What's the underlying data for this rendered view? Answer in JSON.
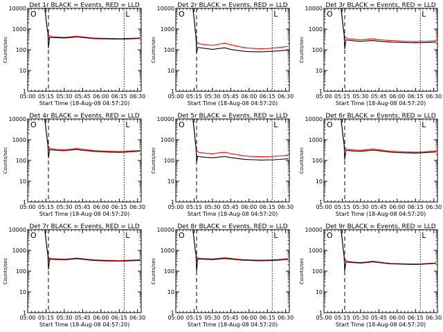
{
  "figure": {
    "xlabel": "Start Time (18-Aug-08 04:57:20)",
    "ylabel": "Counts/sec",
    "x_tick_labels": [
      "05:00",
      "05:15",
      "05:30",
      "05:45",
      "06:00",
      "06:15",
      "06:30"
    ],
    "y_tick_labels": [
      "1",
      "10",
      "100",
      "1000",
      "10000"
    ],
    "colors": {
      "events": "#000000",
      "lld": "#ff0000"
    }
  },
  "chart_data": [
    {
      "type": "line",
      "title": "Det 1r BLACK = Events, RED = LLD",
      "panel_marker_left": "O",
      "panel_marker_right": "L",
      "x_unit": "minutes since 05:00",
      "xlim": [
        0,
        93
      ],
      "ylim": [
        1,
        10000
      ],
      "yscale": "log",
      "vlines": [
        {
          "x": 17,
          "style": "dashed"
        },
        {
          "x": 79,
          "style": "dotted"
        }
      ],
      "x": [
        0,
        3,
        6,
        9,
        12,
        14,
        15,
        16,
        16.5,
        17,
        18,
        20,
        25,
        30,
        35,
        40,
        45,
        50,
        55,
        60,
        65,
        70,
        75,
        80,
        85,
        90,
        92
      ],
      "series": [
        {
          "name": "LLD",
          "color": "#ff0000",
          "values": [
            10000,
            10000,
            10000,
            10000,
            10000,
            10000,
            3000,
            1000,
            700,
            550,
            470,
            430,
            410,
            400,
            420,
            450,
            420,
            390,
            370,
            360,
            355,
            350,
            345,
            350,
            360,
            370,
            380
          ]
        },
        {
          "name": "Events",
          "color": "#000000",
          "values": [
            10000,
            10000,
            10000,
            10000,
            10000,
            10000,
            3000,
            1000,
            700,
            120,
            400,
            390,
            380,
            370,
            390,
            420,
            395,
            365,
            345,
            340,
            335,
            330,
            328,
            330,
            340,
            350,
            355
          ]
        }
      ]
    },
    {
      "type": "line",
      "title": "Det 2r BLACK = Events, RED = LLD",
      "panel_marker_left": "O",
      "panel_marker_right": "L",
      "x_unit": "minutes since 05:00",
      "xlim": [
        0,
        93
      ],
      "ylim": [
        1,
        10000
      ],
      "yscale": "log",
      "vlines": [
        {
          "x": 17,
          "style": "dashed"
        },
        {
          "x": 79,
          "style": "dotted"
        }
      ],
      "x": [
        0,
        3,
        6,
        9,
        12,
        14,
        15,
        16,
        16.5,
        17,
        18,
        20,
        25,
        30,
        35,
        40,
        45,
        50,
        55,
        60,
        65,
        70,
        75,
        80,
        85,
        90,
        92
      ],
      "series": [
        {
          "name": "LLD",
          "color": "#ff0000",
          "values": [
            10000,
            10000,
            10000,
            10000,
            10000,
            10000,
            3000,
            800,
            400,
            260,
            210,
            190,
            175,
            165,
            185,
            210,
            175,
            150,
            130,
            120,
            115,
            112,
            115,
            120,
            130,
            140,
            145
          ]
        },
        {
          "name": "Events",
          "color": "#000000",
          "values": [
            10000,
            10000,
            10000,
            10000,
            10000,
            10000,
            3000,
            800,
            400,
            70,
            130,
            125,
            115,
            105,
            115,
            125,
            105,
            95,
            85,
            82,
            80,
            80,
            82,
            85,
            90,
            95,
            98
          ]
        }
      ]
    },
    {
      "type": "line",
      "title": "Det 3r BLACK = Events, RED = LLD",
      "panel_marker_left": "O",
      "panel_marker_right": "L",
      "x_unit": "minutes since 05:00",
      "xlim": [
        0,
        93
      ],
      "ylim": [
        1,
        10000
      ],
      "yscale": "log",
      "vlines": [
        {
          "x": 17,
          "style": "dashed"
        },
        {
          "x": 79,
          "style": "dotted"
        }
      ],
      "x": [
        0,
        3,
        6,
        9,
        12,
        14,
        15,
        16,
        16.5,
        17,
        18,
        20,
        25,
        30,
        35,
        40,
        45,
        50,
        55,
        60,
        65,
        70,
        75,
        80,
        85,
        90,
        92
      ],
      "series": [
        {
          "name": "LLD",
          "color": "#ff0000",
          "values": [
            10000,
            10000,
            10000,
            10000,
            10000,
            10000,
            3000,
            900,
            600,
            450,
            380,
            340,
            320,
            300,
            320,
            340,
            310,
            290,
            280,
            270,
            260,
            255,
            250,
            255,
            260,
            270,
            280
          ]
        },
        {
          "name": "Events",
          "color": "#000000",
          "values": [
            10000,
            10000,
            10000,
            10000,
            10000,
            10000,
            3000,
            900,
            600,
            110,
            300,
            290,
            270,
            255,
            270,
            280,
            260,
            245,
            235,
            230,
            225,
            220,
            218,
            220,
            225,
            230,
            238
          ]
        }
      ]
    },
    {
      "type": "line",
      "title": "Det 4r BLACK = Events, RED = LLD",
      "panel_marker_left": "O",
      "panel_marker_right": "L",
      "x_unit": "minutes since 05:00",
      "xlim": [
        0,
        93
      ],
      "ylim": [
        1,
        10000
      ],
      "yscale": "log",
      "vlines": [
        {
          "x": 17,
          "style": "dashed"
        },
        {
          "x": 79,
          "style": "dotted"
        }
      ],
      "x": [
        0,
        3,
        6,
        9,
        12,
        14,
        15,
        16,
        16.5,
        17,
        18,
        20,
        25,
        30,
        35,
        40,
        45,
        50,
        55,
        60,
        65,
        70,
        75,
        80,
        85,
        90,
        92
      ],
      "series": [
        {
          "name": "LLD",
          "color": "#ff0000",
          "values": [
            10000,
            10000,
            10000,
            10000,
            10000,
            10000,
            3000,
            1000,
            600,
            460,
            390,
            360,
            340,
            330,
            350,
            380,
            350,
            320,
            300,
            290,
            280,
            275,
            270,
            275,
            290,
            300,
            305
          ]
        },
        {
          "name": "Events",
          "color": "#000000",
          "values": [
            10000,
            10000,
            10000,
            10000,
            10000,
            10000,
            3000,
            1000,
            600,
            130,
            330,
            320,
            305,
            295,
            315,
            335,
            310,
            290,
            270,
            262,
            255,
            250,
            248,
            252,
            265,
            272,
            278
          ]
        }
      ]
    },
    {
      "type": "line",
      "title": "Det 5r BLACK = Events, RED = LLD",
      "panel_marker_left": "O",
      "panel_marker_right": "L",
      "x_unit": "minutes since 05:00",
      "xlim": [
        0,
        93
      ],
      "ylim": [
        1,
        10000
      ],
      "yscale": "log",
      "vlines": [
        {
          "x": 17,
          "style": "dashed"
        },
        {
          "x": 79,
          "style": "dotted"
        }
      ],
      "x": [
        0,
        3,
        6,
        9,
        12,
        14,
        15,
        16,
        16.5,
        17,
        18,
        20,
        25,
        30,
        35,
        40,
        45,
        50,
        55,
        60,
        65,
        70,
        75,
        80,
        85,
        90,
        92
      ],
      "series": [
        {
          "name": "LLD",
          "color": "#ff0000",
          "values": [
            10000,
            10000,
            10000,
            10000,
            10000,
            10000,
            3000,
            800,
            450,
            320,
            260,
            240,
            220,
            210,
            230,
            250,
            215,
            190,
            170,
            160,
            155,
            150,
            152,
            158,
            165,
            175,
            180
          ]
        },
        {
          "name": "Events",
          "color": "#000000",
          "values": [
            10000,
            10000,
            10000,
            10000,
            10000,
            10000,
            3000,
            800,
            450,
            80,
            160,
            150,
            140,
            135,
            145,
            155,
            138,
            125,
            115,
            110,
            108,
            105,
            106,
            108,
            112,
            118,
            120
          ]
        }
      ]
    },
    {
      "type": "line",
      "title": "Det 6r BLACK = Events, RED = LLD",
      "panel_marker_left": "O",
      "panel_marker_right": "L",
      "x_unit": "minutes since 05:00",
      "xlim": [
        0,
        93
      ],
      "ylim": [
        1,
        10000
      ],
      "yscale": "log",
      "vlines": [
        {
          "x": 17,
          "style": "dashed"
        },
        {
          "x": 79,
          "style": "dotted"
        }
      ],
      "x": [
        0,
        3,
        6,
        9,
        12,
        14,
        15,
        16,
        16.5,
        17,
        18,
        20,
        25,
        30,
        35,
        40,
        45,
        50,
        55,
        60,
        65,
        70,
        75,
        80,
        85,
        90,
        92
      ],
      "series": [
        {
          "name": "LLD",
          "color": "#ff0000",
          "values": [
            10000,
            10000,
            10000,
            10000,
            10000,
            10000,
            3000,
            1000,
            600,
            430,
            360,
            340,
            320,
            310,
            330,
            360,
            330,
            300,
            280,
            270,
            260,
            255,
            250,
            255,
            270,
            280,
            285
          ]
        },
        {
          "name": "Events",
          "color": "#000000",
          "values": [
            10000,
            10000,
            10000,
            10000,
            10000,
            10000,
            3000,
            1000,
            600,
            110,
            310,
            300,
            285,
            275,
            295,
            315,
            295,
            270,
            250,
            242,
            235,
            230,
            228,
            232,
            245,
            252,
            258
          ]
        }
      ]
    },
    {
      "type": "line",
      "title": "Det 7r BLACK = Events, RED = LLD",
      "panel_marker_left": "O",
      "panel_marker_right": "L",
      "x_unit": "minutes since 05:00",
      "xlim": [
        0,
        93
      ],
      "ylim": [
        1,
        10000
      ],
      "yscale": "log",
      "vlines": [
        {
          "x": 17,
          "style": "dashed"
        },
        {
          "x": 79,
          "style": "dotted"
        }
      ],
      "x": [
        0,
        3,
        6,
        9,
        12,
        14,
        15,
        16,
        16.5,
        17,
        18,
        20,
        25,
        30,
        35,
        40,
        45,
        50,
        55,
        60,
        65,
        70,
        75,
        80,
        85,
        90,
        92
      ],
      "series": [
        {
          "name": "LLD",
          "color": "#ff0000",
          "values": [
            10000,
            10000,
            10000,
            10000,
            10000,
            10000,
            3000,
            1000,
            650,
            480,
            420,
            400,
            390,
            380,
            400,
            430,
            400,
            370,
            350,
            340,
            330,
            325,
            320,
            325,
            340,
            350,
            355
          ]
        },
        {
          "name": "Events",
          "color": "#000000",
          "values": [
            10000,
            10000,
            10000,
            10000,
            10000,
            10000,
            3000,
            1000,
            650,
            120,
            380,
            370,
            360,
            350,
            370,
            395,
            370,
            345,
            325,
            318,
            310,
            305,
            302,
            306,
            318,
            325,
            330
          ]
        }
      ]
    },
    {
      "type": "line",
      "title": "Det 8r BLACK = Events, RED = LLD",
      "panel_marker_left": "O",
      "panel_marker_right": "L",
      "x_unit": "minutes since 05:00",
      "xlim": [
        0,
        93
      ],
      "ylim": [
        1,
        10000
      ],
      "yscale": "log",
      "vlines": [
        {
          "x": 17,
          "style": "dashed"
        },
        {
          "x": 79,
          "style": "dotted"
        }
      ],
      "x": [
        0,
        3,
        6,
        9,
        12,
        14,
        15,
        16,
        16.5,
        17,
        18,
        20,
        25,
        30,
        35,
        40,
        45,
        50,
        55,
        60,
        65,
        70,
        75,
        80,
        85,
        90,
        92
      ],
      "series": [
        {
          "name": "LLD",
          "color": "#ff0000",
          "values": [
            10000,
            10000,
            10000,
            10000,
            10000,
            10000,
            3000,
            1000,
            650,
            480,
            430,
            410,
            400,
            390,
            410,
            440,
            410,
            380,
            360,
            350,
            345,
            340,
            345,
            350,
            370,
            390,
            400
          ]
        },
        {
          "name": "Events",
          "color": "#000000",
          "values": [
            10000,
            10000,
            10000,
            10000,
            10000,
            10000,
            3000,
            1000,
            650,
            100,
            390,
            380,
            370,
            360,
            380,
            405,
            380,
            355,
            335,
            328,
            322,
            318,
            320,
            326,
            345,
            360,
            368
          ]
        }
      ]
    },
    {
      "type": "line",
      "title": "Det 9r BLACK = Events, RED = LLD",
      "panel_marker_left": "O",
      "panel_marker_right": "L",
      "x_unit": "minutes since 05:00",
      "xlim": [
        0,
        93
      ],
      "ylim": [
        1,
        10000
      ],
      "yscale": "log",
      "vlines": [
        {
          "x": 17,
          "style": "dashed"
        },
        {
          "x": 79,
          "style": "dotted"
        }
      ],
      "x": [
        0,
        3,
        6,
        9,
        12,
        14,
        15,
        16,
        16.5,
        17,
        18,
        20,
        25,
        30,
        35,
        40,
        45,
        50,
        55,
        60,
        65,
        70,
        75,
        80,
        85,
        90,
        92
      ],
      "series": [
        {
          "name": "LLD",
          "color": "#ff0000",
          "values": [
            10000,
            10000,
            10000,
            10000,
            10000,
            10000,
            3000,
            900,
            550,
            400,
            320,
            290,
            270,
            260,
            275,
            300,
            275,
            250,
            235,
            230,
            225,
            222,
            220,
            225,
            235,
            245,
            250
          ]
        },
        {
          "name": "Events",
          "color": "#000000",
          "values": [
            10000,
            10000,
            10000,
            10000,
            10000,
            10000,
            3000,
            900,
            550,
            100,
            280,
            270,
            255,
            245,
            260,
            280,
            260,
            240,
            225,
            220,
            215,
            212,
            210,
            214,
            225,
            232,
            238
          ]
        }
      ]
    }
  ]
}
